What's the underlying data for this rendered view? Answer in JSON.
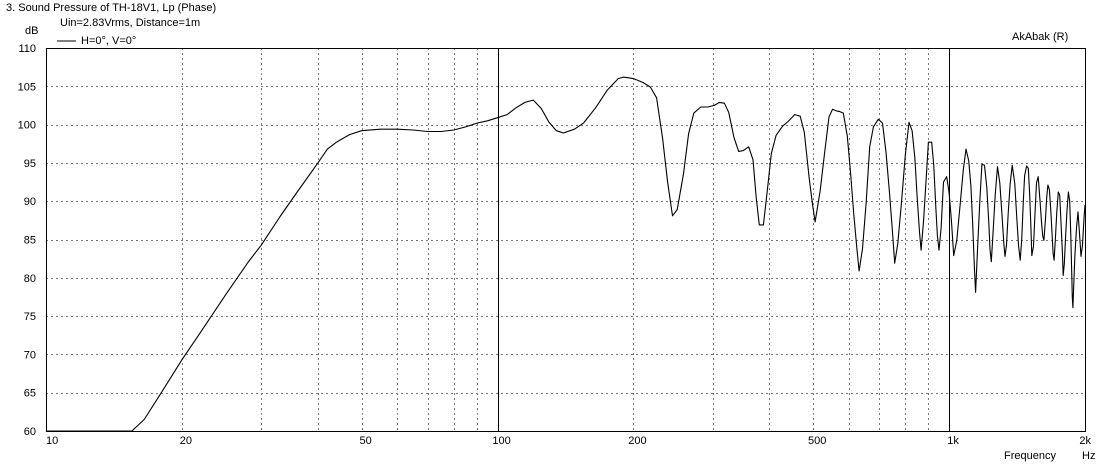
{
  "chart_data": {
    "type": "line",
    "title": "3. Sound Pressure of TH-18V1, Lp (Phase)",
    "subtitle": "Uin=2.83Vrms, Distance=1m",
    "watermark": "AkAbak (R)",
    "ylabel": "dB",
    "xlabel": "Frequency",
    "xunit": "Hz",
    "x_scale": "log",
    "xlim": [
      10,
      2000
    ],
    "ylim": [
      60,
      110
    ],
    "grid": true,
    "legend_position": "top-left",
    "x_ticks": [
      {
        "value": 10,
        "label": "10"
      },
      {
        "value": 20,
        "label": "20"
      },
      {
        "value": 50,
        "label": "50"
      },
      {
        "value": 100,
        "label": "100"
      },
      {
        "value": 200,
        "label": "200"
      },
      {
        "value": 500,
        "label": "500"
      },
      {
        "value": 1000,
        "label": "1k"
      },
      {
        "value": 2000,
        "label": "2k"
      }
    ],
    "y_ticks": [
      60,
      65,
      70,
      75,
      80,
      85,
      90,
      95,
      100,
      105,
      110
    ],
    "series": [
      {
        "name": "H=0°, V=0°",
        "color": "#000000",
        "points": [
          [
            10,
            60
          ],
          [
            15.5,
            60
          ],
          [
            16.5,
            61.5
          ],
          [
            18,
            65
          ],
          [
            20,
            69.3
          ],
          [
            22,
            72.9
          ],
          [
            25,
            77.8
          ],
          [
            28,
            82
          ],
          [
            30,
            84.3
          ],
          [
            33,
            88
          ],
          [
            36,
            91.2
          ],
          [
            40,
            95
          ],
          [
            42,
            96.8
          ],
          [
            44,
            97.7
          ],
          [
            47,
            98.7
          ],
          [
            50,
            99.2
          ],
          [
            55,
            99.4
          ],
          [
            60,
            99.4
          ],
          [
            65,
            99.3
          ],
          [
            70,
            99.1
          ],
          [
            75,
            99.1
          ],
          [
            80,
            99.3
          ],
          [
            85,
            99.7
          ],
          [
            90,
            100.2
          ],
          [
            95,
            100.5
          ],
          [
            100,
            100.9
          ],
          [
            105,
            101.3
          ],
          [
            110,
            102.2
          ],
          [
            115,
            102.9
          ],
          [
            120,
            103.2
          ],
          [
            125,
            102.1
          ],
          [
            130,
            100.3
          ],
          [
            135,
            99.2
          ],
          [
            140,
            98.9
          ],
          [
            148,
            99.4
          ],
          [
            155,
            100.2
          ],
          [
            165,
            102.2
          ],
          [
            175,
            104.5
          ],
          [
            185,
            106
          ],
          [
            190,
            106.2
          ],
          [
            200,
            106
          ],
          [
            210,
            105.5
          ],
          [
            218,
            104.9
          ],
          [
            225,
            103.5
          ],
          [
            232,
            98.2
          ],
          [
            238,
            92.5
          ],
          [
            244,
            88.1
          ],
          [
            250,
            88.9
          ],
          [
            258,
            93.5
          ],
          [
            265,
            98.8
          ],
          [
            272,
            101.5
          ],
          [
            282,
            102.3
          ],
          [
            292,
            102.3
          ],
          [
            302,
            102.5
          ],
          [
            310,
            102.9
          ],
          [
            318,
            102.8
          ],
          [
            325,
            101.6
          ],
          [
            334,
            98.3
          ],
          [
            342,
            96.5
          ],
          [
            350,
            96.6
          ],
          [
            360,
            97.1
          ],
          [
            368,
            95.4
          ],
          [
            374,
            90.5
          ],
          [
            380,
            86.9
          ],
          [
            388,
            86.9
          ],
          [
            396,
            91.5
          ],
          [
            404,
            96.2
          ],
          [
            414,
            98.6
          ],
          [
            428,
            99.8
          ],
          [
            440,
            100.4
          ],
          [
            455,
            101.3
          ],
          [
            468,
            101.1
          ],
          [
            478,
            99
          ],
          [
            490,
            93
          ],
          [
            498,
            89.7
          ],
          [
            505,
            87.3
          ],
          [
            518,
            91.3
          ],
          [
            530,
            96.3
          ],
          [
            542,
            101
          ],
          [
            552,
            102
          ],
          [
            562,
            101.8
          ],
          [
            573,
            101.7
          ],
          [
            583,
            101.5
          ],
          [
            595,
            98.5
          ],
          [
            605,
            93.8
          ],
          [
            615,
            88.4
          ],
          [
            625,
            83.8
          ],
          [
            632,
            80.9
          ],
          [
            643,
            83.8
          ],
          [
            655,
            89.7
          ],
          [
            667,
            97.1
          ],
          [
            680,
            99.7
          ],
          [
            697,
            100.7
          ],
          [
            712,
            100.2
          ],
          [
            725,
            96.4
          ],
          [
            738,
            91.1
          ],
          [
            750,
            85.6
          ],
          [
            758,
            81.9
          ],
          [
            770,
            84.5
          ],
          [
            785,
            90
          ],
          [
            800,
            96
          ],
          [
            815,
            100.3
          ],
          [
            828,
            99.2
          ],
          [
            840,
            95.6
          ],
          [
            850,
            90.4
          ],
          [
            860,
            86
          ],
          [
            867,
            83.6
          ],
          [
            878,
            87.5
          ],
          [
            890,
            93
          ],
          [
            900,
            97.7
          ],
          [
            915,
            97.7
          ],
          [
            925,
            94.6
          ],
          [
            935,
            89
          ],
          [
            942,
            85.5
          ],
          [
            950,
            83.6
          ],
          [
            960,
            86.5
          ],
          [
            972,
            92.5
          ],
          [
            988,
            93.2
          ],
          [
            1000,
            91.1
          ],
          [
            1012,
            87.5
          ],
          [
            1024,
            82.9
          ],
          [
            1040,
            84.9
          ],
          [
            1058,
            89.5
          ],
          [
            1075,
            94.1
          ],
          [
            1090,
            96.8
          ],
          [
            1105,
            95.3
          ],
          [
            1118,
            92
          ],
          [
            1128,
            87
          ],
          [
            1138,
            81.3
          ],
          [
            1145,
            78.1
          ],
          [
            1158,
            84.5
          ],
          [
            1170,
            90.2
          ],
          [
            1182,
            94.8
          ],
          [
            1198,
            94.7
          ],
          [
            1212,
            91.8
          ],
          [
            1225,
            87
          ],
          [
            1232,
            83.7
          ],
          [
            1240,
            82.1
          ],
          [
            1252,
            86
          ],
          [
            1265,
            90.8
          ],
          [
            1280,
            94.5
          ],
          [
            1295,
            92.4
          ],
          [
            1310,
            88.2
          ],
          [
            1322,
            84.5
          ],
          [
            1330,
            82.8
          ],
          [
            1340,
            84.3
          ],
          [
            1352,
            88.4
          ],
          [
            1365,
            92.2
          ],
          [
            1380,
            94.7
          ],
          [
            1398,
            92.3
          ],
          [
            1412,
            88
          ],
          [
            1425,
            84.3
          ],
          [
            1437,
            82.3
          ],
          [
            1448,
            84.9
          ],
          [
            1460,
            89.9
          ],
          [
            1470,
            93.3
          ],
          [
            1485,
            94.6
          ],
          [
            1498,
            94.3
          ],
          [
            1508,
            91.1
          ],
          [
            1518,
            86.6
          ],
          [
            1525,
            82.9
          ],
          [
            1538,
            84.1
          ],
          [
            1550,
            88.4
          ],
          [
            1562,
            92.4
          ],
          [
            1575,
            93.2
          ],
          [
            1590,
            90.1
          ],
          [
            1602,
            87.3
          ],
          [
            1612,
            85.5
          ],
          [
            1622,
            84.9
          ],
          [
            1634,
            87.5
          ],
          [
            1645,
            90.5
          ],
          [
            1655,
            92.1
          ],
          [
            1668,
            91.5
          ],
          [
            1680,
            88.8
          ],
          [
            1692,
            85.4
          ],
          [
            1700,
            83.2
          ],
          [
            1708,
            82.3
          ],
          [
            1720,
            85.1
          ],
          [
            1732,
            88.6
          ],
          [
            1745,
            91.2
          ],
          [
            1758,
            90.8
          ],
          [
            1770,
            87.2
          ],
          [
            1782,
            83.3
          ],
          [
            1790,
            80.3
          ],
          [
            1800,
            81.8
          ],
          [
            1812,
            85.4
          ],
          [
            1825,
            88.8
          ],
          [
            1838,
            91.2
          ],
          [
            1850,
            90
          ],
          [
            1860,
            85.5
          ],
          [
            1868,
            81.3
          ],
          [
            1875,
            77.5
          ],
          [
            1880,
            76.1
          ],
          [
            1890,
            79.6
          ],
          [
            1900,
            82.9
          ],
          [
            1915,
            86.5
          ],
          [
            1930,
            88.6
          ],
          [
            1945,
            85.8
          ],
          [
            1960,
            82.8
          ],
          [
            1975,
            84.3
          ],
          [
            1990,
            87.8
          ],
          [
            2000,
            89.5
          ]
        ]
      }
    ]
  }
}
